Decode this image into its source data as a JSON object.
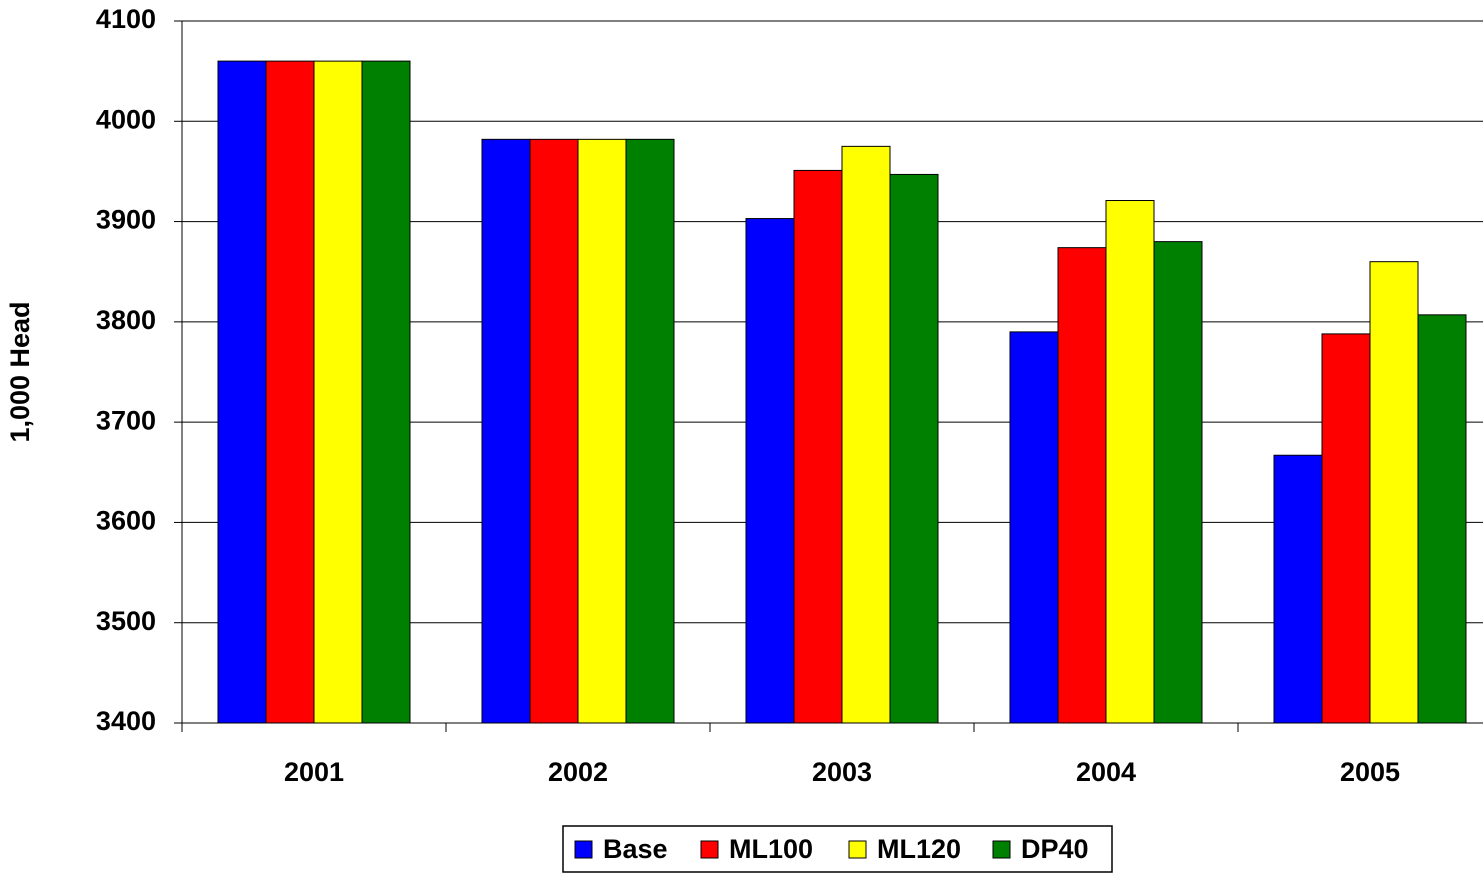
{
  "chart_data": {
    "type": "bar",
    "y_label": "1,000 Head",
    "categories": [
      "2001",
      "2002",
      "2003",
      "2004",
      "2005"
    ],
    "series": [
      {
        "name": "Base",
        "color": "#0000ff",
        "values": [
          4060,
          3982,
          3903,
          3790,
          3667
        ]
      },
      {
        "name": "ML100",
        "color": "#ff0000",
        "values": [
          4060,
          3982,
          3951,
          3874,
          3788
        ]
      },
      {
        "name": "ML120",
        "color": "#ffff00",
        "values": [
          4060,
          3982,
          3975,
          3921,
          3860
        ]
      },
      {
        "name": "DP40",
        "color": "#008000",
        "values": [
          4060,
          3982,
          3947,
          3880,
          3807
        ]
      }
    ],
    "ylim": [
      3400,
      4100
    ],
    "yticks": [
      3400,
      3500,
      3600,
      3700,
      3800,
      3900,
      4000,
      4100
    ],
    "grid": true,
    "legend": "bottom"
  }
}
